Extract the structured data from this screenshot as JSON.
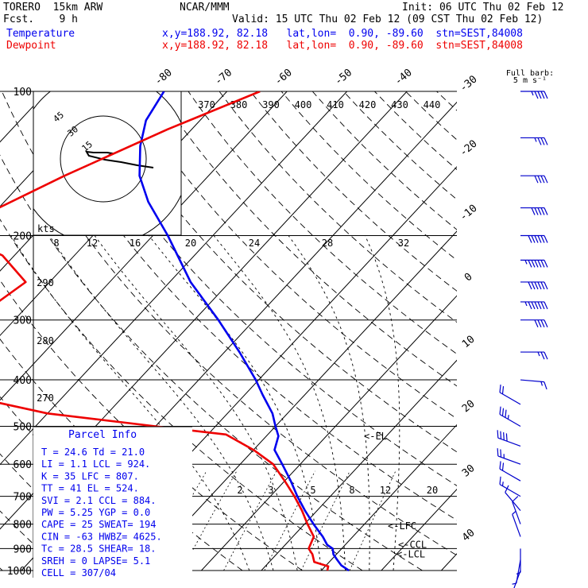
{
  "header": {
    "model": "TORERO  15km ARW",
    "org": "NCAR/MMM",
    "init": "Init: 06 UTC Thu 02 Feb 12",
    "fcst": "Fcst.    9 h",
    "valid": "Valid: 15 UTC Thu 02 Feb 12 (09 CST Thu 02 Feb 12)",
    "temp_label": "Temperature",
    "dew_label": "Dewpoint",
    "temp_loc": "x,y=188.92, 82.18   lat,lon=  0.90, -89.60  stn=SEST,84008",
    "dew_loc": "x,y=188.92, 82.18   lat,lon=  0.90, -89.60  stn=SEST,84008"
  },
  "barb_legend": [
    "Full barb:",
    "5 m s⁻¹"
  ],
  "hodograph": {
    "units": "kts",
    "ring_labels": [
      "15",
      "30",
      "45"
    ]
  },
  "parcel_info": {
    "title": "Parcel Info",
    "rows": [
      "T  =   24.6  Td =  21.0",
      "LI =    1.1  LCL =  924.",
      "K  =     35  LFC =  807.",
      "TT =     41  EL  =  524.",
      "SVI =   2.1  CCL =  884.",
      "PW =   5.25  YGP =   0.0",
      "CAPE =   25  SWEAT=  194",
      "CIN =   -63  HWBZ= 4625.",
      "Tc =   28.5  SHEAR=  18.",
      "SREH =    0  LAPSE=  5.1",
      "CELL = 307/04"
    ]
  },
  "markers": {
    "el": "<-EL",
    "lfc": "<-LFC",
    "ccl": "<-CCL",
    "lcl": "<-LCL"
  },
  "chart_data": {
    "type": "line",
    "title": "Skew-T log-P sounding",
    "pressure_levels": [
      100,
      200,
      300,
      400,
      500,
      600,
      700,
      800,
      900,
      1000
    ],
    "isotherm_labels": [
      -80,
      -70,
      -60,
      -50,
      -40,
      -30,
      -20,
      -10,
      0,
      10,
      20,
      30,
      40
    ],
    "theta_labels": [
      370,
      380,
      390,
      400,
      410,
      420,
      430,
      440
    ],
    "mixing_ratio_labels_upper": [
      8,
      12,
      16,
      20,
      24,
      28,
      32
    ],
    "mixing_ratio_labels_lower": [
      2,
      3,
      5,
      8,
      12,
      20
    ],
    "theta_labels_left": [
      290,
      280,
      270
    ],
    "series": [
      {
        "name": "Temperature",
        "color": "#0000ee",
        "p": [
          1000,
          975,
          950,
          925,
          900,
          884,
          850,
          800,
          750,
          700,
          650,
          600,
          560,
          524,
          500,
          470,
          430,
          400,
          350,
          300,
          250,
          200,
          170,
          150,
          130,
          115,
          100
        ],
        "t": [
          24.6,
          22.5,
          21.0,
          19.5,
          18.5,
          17.0,
          15.0,
          11.5,
          8.0,
          4.5,
          1.0,
          -3.0,
          -6.5,
          -8.0,
          -10.0,
          -12.5,
          -17.0,
          -20.5,
          -27.5,
          -36.0,
          -46.5,
          -57.5,
          -66.0,
          -71.5,
          -76.0,
          -79.0,
          -80.5
        ]
      },
      {
        "name": "Dewpoint",
        "color": "#ee0000",
        "p": [
          1000,
          980,
          960,
          925,
          900,
          850,
          800,
          750,
          700,
          650,
          600,
          560,
          520,
          500,
          470,
          430,
          410,
          380,
          350,
          320,
          300,
          275,
          250,
          220,
          200,
          175,
          150,
          120,
          100
        ],
        "t": [
          21.0,
          20.5,
          17.5,
          16.0,
          14.5,
          13.5,
          10.5,
          7.5,
          4.0,
          0.0,
          -4.5,
          -10.0,
          -17.0,
          -30.0,
          -50.0,
          -67.0,
          -78.0,
          -79.0,
          -77.5,
          -83.0,
          -80.0,
          -75.5,
          -74.0,
          -82.0,
          -92.0,
          -90.0,
          -84.0,
          -74.0,
          -64.5
        ]
      }
    ],
    "wind_profile": [
      {
        "p": 100,
        "dir": 90,
        "spd": 9
      },
      {
        "p": 125,
        "dir": 90,
        "spd": 7
      },
      {
        "p": 150,
        "dir": 90,
        "spd": 8
      },
      {
        "p": 175,
        "dir": 90,
        "spd": 10
      },
      {
        "p": 200,
        "dir": 90,
        "spd": 12
      },
      {
        "p": 225,
        "dir": 90,
        "spd": 13
      },
      {
        "p": 250,
        "dir": 90,
        "spd": 12
      },
      {
        "p": 275,
        "dir": 90,
        "spd": 13
      },
      {
        "p": 300,
        "dir": 90,
        "spd": 8
      },
      {
        "p": 350,
        "dir": 90,
        "spd": 5
      },
      {
        "p": 400,
        "dir": 95,
        "spd": 3
      },
      {
        "p": 450,
        "dir": 300,
        "spd": 4
      },
      {
        "p": 500,
        "dir": 300,
        "spd": 7
      },
      {
        "p": 550,
        "dir": 290,
        "spd": 8
      },
      {
        "p": 600,
        "dir": 290,
        "spd": 5
      },
      {
        "p": 650,
        "dir": 300,
        "spd": 4
      },
      {
        "p": 700,
        "dir": 300,
        "spd": 3
      },
      {
        "p": 750,
        "dir": 320,
        "spd": 2
      },
      {
        "p": 800,
        "dir": 340,
        "spd": 2
      },
      {
        "p": 850,
        "dir": 340,
        "spd": 1
      },
      {
        "p": 900,
        "dir": 180,
        "spd": 1
      },
      {
        "p": 950,
        "dir": 190,
        "spd": 1
      },
      {
        "p": 1000,
        "dir": 200,
        "spd": 2
      }
    ],
    "hodograph_trace": [
      [
        0,
        -4
      ],
      [
        1,
        -6
      ],
      [
        2,
        -8
      ],
      [
        0,
        -9
      ],
      [
        -3,
        -9
      ],
      [
        -6,
        -9
      ],
      [
        -9,
        -10
      ],
      [
        -8,
        -5
      ],
      [
        -1,
        0
      ],
      [
        6,
        3
      ],
      [
        13,
        7
      ],
      [
        20,
        10
      ]
    ]
  }
}
